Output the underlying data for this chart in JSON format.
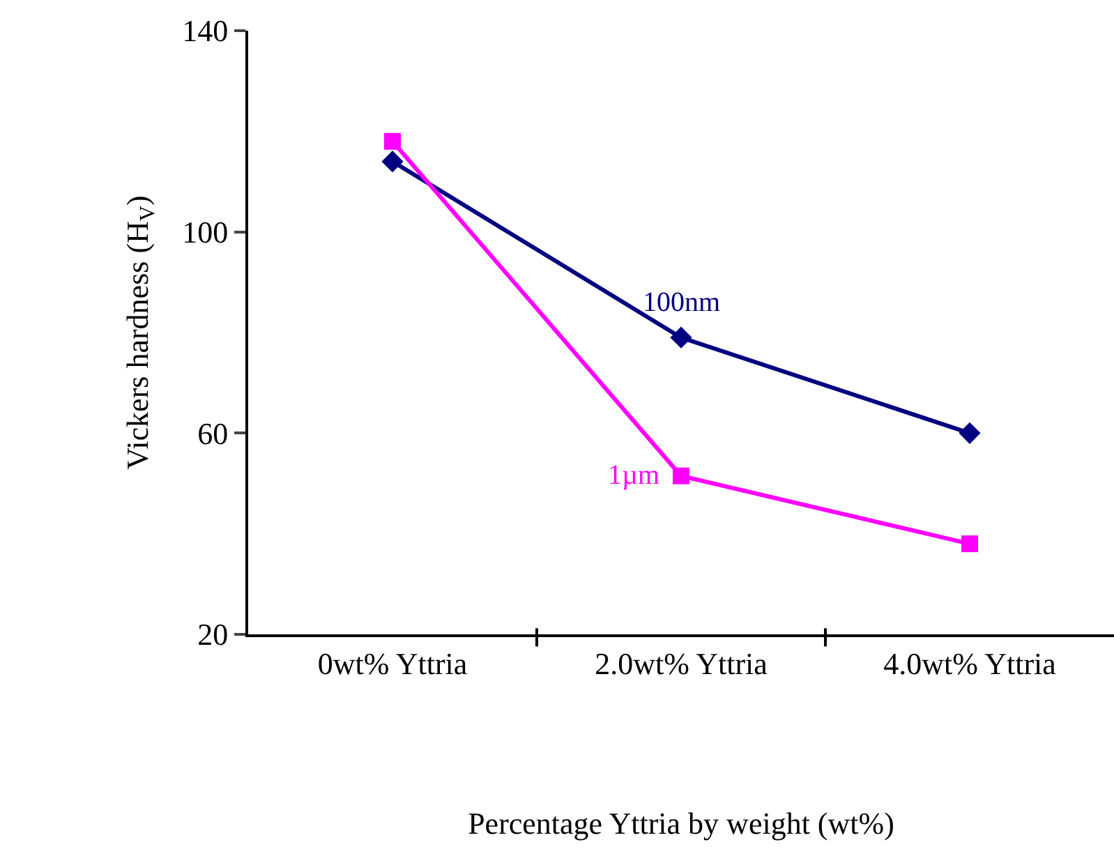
{
  "chart_data": {
    "type": "line",
    "xlabel": "Percentage Yttria by weight (wt%)",
    "ylabel": "Vickers hardness (H$_{V}$)",
    "categories": [
      "0wt% Yttria",
      "2.0wt% Yttria",
      "4.0wt% Yttria"
    ],
    "series": [
      {
        "name": "100nm",
        "color": "#000080",
        "values": [
          114,
          79,
          60
        ],
        "marker": "diamond"
      },
      {
        "name": "1µm",
        "color": "#ff00ff",
        "values": [
          118,
          51.5,
          38
        ],
        "marker": "square"
      }
    ],
    "ylim": [
      20,
      140
    ],
    "yticks": [
      20,
      60,
      100,
      140
    ],
    "grid": false,
    "legend": false,
    "line_style": "solid"
  }
}
